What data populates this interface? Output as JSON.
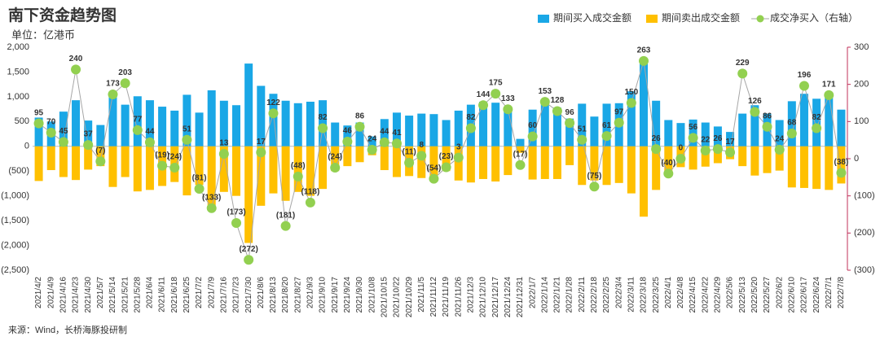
{
  "chart_data": {
    "type": "bar-line",
    "title": "南下资金趋势图",
    "subtitle": "单位：亿港币",
    "source": "来源：Wind，长桥海豚投研制",
    "categories": [
      "2021/4/2",
      "2021/4/9",
      "2021/4/16",
      "2021/4/23",
      "2021/4/30",
      "2021/5/7",
      "2021/5/14",
      "2021/5/21",
      "2021/5/28",
      "2021/6/4",
      "2021/6/11",
      "2021/6/18",
      "2021/6/25",
      "2021/7/2",
      "2021/7/9",
      "2021/7/16",
      "2021/7/23",
      "2021/7/30",
      "2021/8/6",
      "2021/8/13",
      "2021/8/20",
      "2021/8/27",
      "2021/9/3",
      "2021/9/10",
      "2021/9/17",
      "2021/9/24",
      "2021/9/30",
      "2021/10/8",
      "2021/10/15",
      "2021/10/22",
      "2021/10/29",
      "2021/11/5",
      "2021/11/12",
      "2021/11/19",
      "2021/11/26",
      "2021/12/3",
      "2021/12/10",
      "2021/12/17",
      "2021/12/24",
      "2021/12/31",
      "2022/1/7",
      "2022/1/14",
      "2022/1/21",
      "2022/1/28",
      "2022/2/11",
      "2022/2/18",
      "2022/2/25",
      "2022/3/4",
      "2022/3/11",
      "2022/3/18",
      "2022/3/25",
      "2022/4/1",
      "2022/4/8",
      "2022/4/15",
      "2022/4/22",
      "2022/4/29",
      "2022/5/6",
      "2022/5/13",
      "2022/5/20",
      "2022/5/27",
      "2022/6/2",
      "2022/6/10",
      "2022/6/17",
      "2022/6/24",
      "2022/7/1",
      "2022/7/8"
    ],
    "series": [
      {
        "name": "期间买入成交金额",
        "type": "bar",
        "color": "#1aa7e6",
        "values": [
          580,
          500,
          700,
          930,
          520,
          430,
          1000,
          840,
          1010,
          930,
          800,
          720,
          1040,
          680,
          1130,
          920,
          830,
          1670,
          1220,
          1060,
          920,
          870,
          900,
          930,
          480,
          420,
          480,
          200,
          550,
          680,
          620,
          660,
          650,
          530,
          720,
          840,
          900,
          880,
          700,
          150,
          740,
          870,
          780,
          560,
          860,
          600,
          860,
          870,
          1110,
          1700,
          920,
          530,
          470,
          540,
          480,
          400,
          290,
          660,
          830,
          660,
          530,
          910,
          1060,
          960,
          1020,
          740
        ]
      },
      {
        "name": "期间卖出成交金额",
        "type": "bar",
        "color": "#ffc000",
        "values": [
          -700,
          -480,
          -620,
          -680,
          -470,
          -400,
          -820,
          -620,
          -910,
          -880,
          -800,
          -720,
          -990,
          -780,
          -1250,
          -920,
          -1000,
          -1950,
          -1200,
          -950,
          -1100,
          -920,
          -1000,
          -860,
          -500,
          -400,
          -320,
          -180,
          -480,
          -620,
          -600,
          -640,
          -650,
          -500,
          -690,
          -730,
          -660,
          -710,
          -580,
          -130,
          -670,
          -660,
          -660,
          -380,
          -780,
          -690,
          -780,
          -740,
          -950,
          -1420,
          -880,
          -560,
          -420,
          -470,
          -410,
          -340,
          -260,
          -400,
          -590,
          -540,
          -490,
          -830,
          -840,
          -860,
          -880,
          -750
        ]
      },
      {
        "name": "成交净买入（右轴）",
        "type": "line",
        "axis": "y2",
        "color": "#92d050",
        "line_color": "#a6a6a6",
        "values": [
          95,
          70,
          45,
          240,
          37,
          -7,
          173,
          203,
          77,
          44,
          -19,
          -24,
          51,
          -81,
          -133,
          13,
          -173,
          -272,
          17,
          122,
          -181,
          -48,
          -118,
          82,
          -24,
          46,
          86,
          24,
          44,
          41,
          -11,
          8,
          -54,
          -23,
          3,
          82,
          144,
          175,
          133,
          -17,
          60,
          153,
          128,
          96,
          51,
          -75,
          61,
          97,
          150,
          263,
          26,
          -40,
          0,
          56,
          22,
          26,
          17,
          229,
          126,
          86,
          24,
          68,
          196,
          82,
          171,
          -38
        ],
        "value_labels": [
          "95",
          "70",
          "45",
          "240",
          "37",
          "(7)",
          "173",
          "203",
          "77",
          "44",
          "(19)",
          "(24)",
          "51",
          "(81)",
          "(133)",
          "13",
          "(173)",
          "(272)",
          "17",
          "122",
          "(181)",
          "(48)",
          "(118)",
          "82",
          "(24)",
          "46",
          "86",
          "24",
          "44",
          "41",
          "(11)",
          "8",
          "(54)",
          "(23)",
          "3",
          "82",
          "144",
          "175",
          "133",
          "(17)",
          "60",
          "153",
          "128",
          "96",
          "51",
          "(75)",
          "61",
          "97",
          "150",
          "263",
          "26",
          "(40)",
          "0",
          "56",
          "22",
          "26",
          "17",
          "229",
          "126",
          "86",
          "24",
          "68",
          "196",
          "82",
          "171",
          "(38)"
        ]
      }
    ],
    "ylim": [
      -2500,
      2000
    ],
    "yticks": [
      {
        "value": 2000,
        "label": "2,000"
      },
      {
        "value": 1500,
        "label": "1,500"
      },
      {
        "value": 1000,
        "label": "1,000"
      },
      500,
      0,
      {
        "value": -500,
        "label": "(500)"
      },
      {
        "value": -1000,
        "label": "(1,000)"
      },
      {
        "value": -1500,
        "label": "(1,500)"
      },
      {
        "value": -2000,
        "label": "(2,000)"
      },
      {
        "value": -2500,
        "label": "(2,500)"
      }
    ],
    "y2lim": [
      -300,
      300
    ],
    "y2ticks": [
      300,
      200,
      100,
      0,
      {
        "value": -100,
        "label": "(100)"
      },
      {
        "value": -200,
        "label": "(200)"
      },
      {
        "value": -300,
        "label": "(300)"
      }
    ],
    "negative_label_color": "#ff0000",
    "positive_label_color": "#000000",
    "right_axis_color": "#c0305a"
  }
}
